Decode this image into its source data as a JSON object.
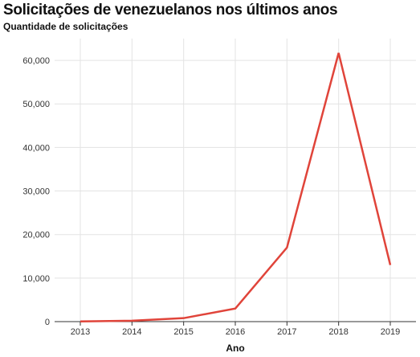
{
  "chart_data": {
    "type": "line",
    "title": "Solicitações de venezuelanos nos últimos anos",
    "subtitle": "Quantidade de solicitações",
    "xlabel": "Ano",
    "ylabel": "",
    "x": [
      "2013",
      "2014",
      "2015",
      "2016",
      "2017",
      "2018",
      "2019"
    ],
    "series": [
      {
        "values": [
          50,
          200,
          800,
          3000,
          17000,
          61700,
          13000
        ],
        "color": "#e0443a"
      }
    ],
    "ylim": [
      0,
      65000
    ],
    "yticks": [
      0,
      10000,
      20000,
      30000,
      40000,
      50000,
      60000
    ],
    "ytick_labels": [
      "0",
      "10,000",
      "20,000",
      "30,000",
      "40,000",
      "50,000",
      "60,000"
    ],
    "grid": true,
    "legend": "none"
  }
}
